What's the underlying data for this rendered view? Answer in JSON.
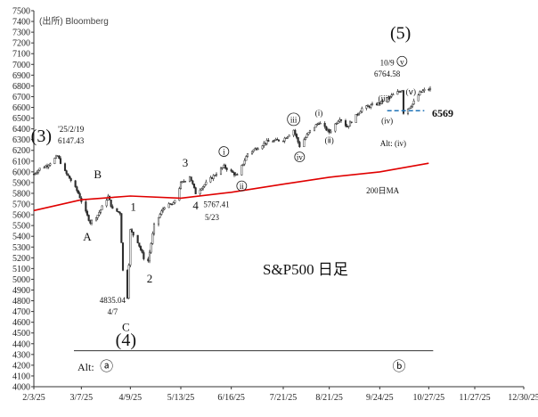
{
  "chart_data": {
    "type": "candlestick",
    "source": "(出所) Bloomberg",
    "title": "S&P500 日足",
    "ylim": [
      4000,
      7500
    ],
    "yticks": [
      4000,
      4100,
      4200,
      4300,
      4400,
      4500,
      4600,
      4700,
      4800,
      4900,
      5000,
      5100,
      5200,
      5300,
      5400,
      5500,
      5600,
      5700,
      5800,
      5900,
      6000,
      6100,
      6200,
      6300,
      6400,
      6500,
      6600,
      6700,
      6800,
      6900,
      7000,
      7100,
      7200,
      7300,
      7400,
      7500
    ],
    "xlim": [
      "2025-02-03",
      "2025-12-30"
    ],
    "xticks": [
      {
        "date": "2025-02-03",
        "label": "2/3/25"
      },
      {
        "date": "2025-03-07",
        "label": "3/7/25"
      },
      {
        "date": "2025-04-09",
        "label": "4/9/25"
      },
      {
        "date": "2025-05-13",
        "label": "5/13/25"
      },
      {
        "date": "2025-06-16",
        "label": "6/16/25"
      },
      {
        "date": "2025-07-21",
        "label": "7/21/25"
      },
      {
        "date": "2025-08-21",
        "label": "8/21/25"
      },
      {
        "date": "2025-09-24",
        "label": "9/24/25"
      },
      {
        "date": "2025-10-27",
        "label": "10/27/25"
      },
      {
        "date": "2025-11-27",
        "label": "11/27/25"
      },
      {
        "date": "2025-12-30",
        "label": "12/30/25"
      }
    ],
    "price_path": [
      [
        "2025-02-03",
        5980
      ],
      [
        "2025-02-07",
        6030
      ],
      [
        "2025-02-12",
        6060
      ],
      [
        "2025-02-19",
        6147
      ],
      [
        "2025-02-24",
        6000
      ],
      [
        "2025-02-28",
        5920
      ],
      [
        "2025-03-05",
        5800
      ],
      [
        "2025-03-10",
        5620
      ],
      [
        "2025-03-13",
        5530
      ],
      [
        "2025-03-18",
        5600
      ],
      [
        "2025-03-25",
        5770
      ],
      [
        "2025-03-28",
        5650
      ],
      [
        "2025-04-02",
        5620
      ],
      [
        "2025-04-04",
        5080
      ],
      [
        "2025-04-07",
        4835
      ],
      [
        "2025-04-09",
        5456
      ],
      [
        "2025-04-14",
        5350
      ],
      [
        "2025-04-18",
        5200
      ],
      [
        "2025-04-21",
        5170
      ],
      [
        "2025-04-25",
        5500
      ],
      [
        "2025-05-02",
        5680
      ],
      [
        "2025-05-08",
        5700
      ],
      [
        "2025-05-13",
        5890
      ],
      [
        "2025-05-19",
        5960
      ],
      [
        "2025-05-23",
        5802
      ],
      [
        "2025-06-02",
        5935
      ],
      [
        "2025-06-11",
        6050
      ],
      [
        "2025-06-16",
        6000
      ],
      [
        "2025-06-20",
        5960
      ],
      [
        "2025-06-27",
        6170
      ],
      [
        "2025-07-10",
        6280
      ],
      [
        "2025-07-21",
        6300
      ],
      [
        "2025-07-28",
        6390
      ],
      [
        "2025-08-01",
        6240
      ],
      [
        "2025-08-08",
        6380
      ],
      [
        "2025-08-14",
        6460
      ],
      [
        "2025-08-21",
        6370
      ],
      [
        "2025-08-28",
        6500
      ],
      [
        "2025-09-02",
        6420
      ],
      [
        "2025-09-12",
        6590
      ],
      [
        "2025-09-24",
        6640
      ],
      [
        "2025-10-01",
        6700
      ],
      [
        "2025-10-09",
        6764
      ],
      [
        "2025-10-10",
        6552
      ],
      [
        "2025-10-16",
        6630
      ],
      [
        "2025-10-21",
        6735
      ],
      [
        "2025-10-24",
        6760
      ],
      [
        "2025-10-28",
        6770
      ]
    ],
    "ma200": {
      "name": "200日MA",
      "points": [
        [
          "2025-02-03",
          5640
        ],
        [
          "2025-03-07",
          5740
        ],
        [
          "2025-04-09",
          5775
        ],
        [
          "2025-05-13",
          5755
        ],
        [
          "2025-06-16",
          5810
        ],
        [
          "2025-07-21",
          5885
        ],
        [
          "2025-08-21",
          5950
        ],
        [
          "2025-09-24",
          6000
        ],
        [
          "2025-10-27",
          6080
        ]
      ]
    },
    "support_level": {
      "value": 6569,
      "label": "6569"
    },
    "bottom_line": 4335,
    "annotations": [
      {
        "text": "(3)",
        "date": "2025-02-08",
        "price": 6280,
        "size": 20
      },
      {
        "text": "'25/2/19",
        "date": "2025-02-28",
        "price": 6370,
        "size": 9
      },
      {
        "text": "6147.43",
        "date": "2025-02-28",
        "price": 6265,
        "size": 9
      },
      {
        "text": "B",
        "date": "2025-03-18",
        "price": 5940,
        "size": 13
      },
      {
        "text": "A",
        "date": "2025-03-11",
        "price": 5360,
        "size": 13
      },
      {
        "text": "1",
        "date": "2025-04-11",
        "price": 5640,
        "size": 13
      },
      {
        "text": "2",
        "date": "2025-04-22",
        "price": 4970,
        "size": 13
      },
      {
        "text": "C",
        "date": "2025-04-06",
        "price": 4520,
        "size": 13
      },
      {
        "text": "4835.04",
        "date": "2025-03-28",
        "price": 4780,
        "size": 9
      },
      {
        "text": "4/7",
        "date": "2025-03-28",
        "price": 4670,
        "size": 9
      },
      {
        "text": "(4)",
        "date": "2025-04-06",
        "price": 4380,
        "size": 20
      },
      {
        "text": "3",
        "date": "2025-05-16",
        "price": 6050,
        "size": 13
      },
      {
        "text": "4",
        "date": "2025-05-23",
        "price": 5650,
        "size": 13
      },
      {
        "text": "5767.41",
        "date": "2025-06-06",
        "price": 5670,
        "size": 9
      },
      {
        "text": "5/23",
        "date": "2025-06-03",
        "price": 5550,
        "size": 9
      },
      {
        "text": "i",
        "date": "2025-06-11",
        "price": 6160,
        "circled": true,
        "size": 9
      },
      {
        "text": "ii",
        "date": "2025-06-23",
        "price": 5840,
        "circled": true,
        "size": 9
      },
      {
        "text": "iii",
        "date": "2025-07-28",
        "price": 6460,
        "circled": true,
        "size": 9
      },
      {
        "text": "iv",
        "date": "2025-08-01",
        "price": 6110,
        "circled": true,
        "size": 9
      },
      {
        "text": "(ⅰ)",
        "date": "2025-08-14",
        "price": 6520,
        "size": 9
      },
      {
        "text": "(ⅱ)",
        "date": "2025-08-21",
        "price": 6270,
        "size": 9
      },
      {
        "text": "(iii)",
        "date": "2025-09-27",
        "price": 6660,
        "size": 9
      },
      {
        "text": "(iv)",
        "date": "2025-09-29",
        "price": 6450,
        "size": 9
      },
      {
        "text": "(ⅴ)",
        "date": "2025-10-15",
        "price": 6720,
        "size": 9
      },
      {
        "text": "10/9",
        "date": "2025-09-29",
        "price": 6990,
        "size": 9
      },
      {
        "text": "6764.58",
        "date": "2025-09-29",
        "price": 6885,
        "size": 9
      },
      {
        "text": "v",
        "date": "2025-10-09",
        "price": 7000,
        "circled": true,
        "size": 9
      },
      {
        "text": "(5)",
        "date": "2025-10-08",
        "price": 7240,
        "size": 20
      },
      {
        "text": "Alt: (iv)",
        "date": "2025-10-03",
        "price": 6240,
        "size": 9
      },
      {
        "text": "200日MA",
        "date": "2025-09-26",
        "price": 5800,
        "size": 9,
        "color": "#e00000"
      },
      {
        "text": "Alt:",
        "date": "2025-03-10",
        "price": 4150,
        "size": 12
      },
      {
        "text": "ⓐ",
        "date": "2025-03-24",
        "price": 4150,
        "size": 15
      },
      {
        "text": "ⓑ",
        "date": "2025-10-07",
        "price": 4150,
        "size": 15
      }
    ]
  },
  "colors": {
    "ma": "#e00000",
    "support": "#1f73b8",
    "candles": "#2b2b2b",
    "axis": "#333333"
  }
}
